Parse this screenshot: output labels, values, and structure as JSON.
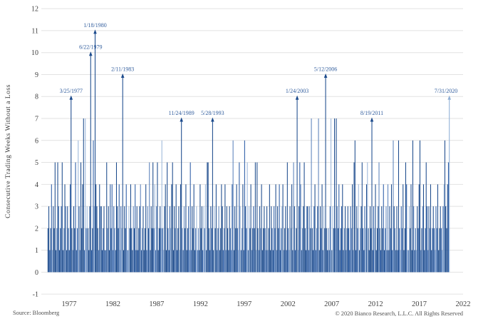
{
  "figure": {
    "source": "Source: Bloomberg",
    "copyright": "© 2020 Bianco Research, L.L.C. All Rights Reserved"
  },
  "chart_data": {
    "type": "bar",
    "title": "",
    "ylabel": "Consecutive Trading Weeks Without a Loss",
    "xlabel": "",
    "grid": true,
    "legend": "none",
    "ylim": [
      -1,
      12
    ],
    "y_tick_labels": [
      "-1",
      "0",
      "1",
      "2",
      "3",
      "4",
      "5",
      "6",
      "7",
      "8",
      "9",
      "10",
      "11",
      "12"
    ],
    "x_tick_labels": [
      "1977",
      "1982",
      "1987",
      "1992",
      "1997",
      "2002",
      "2007",
      "2012",
      "2017",
      "2022"
    ],
    "x_range_years": [
      1975.3,
      2020.6
    ],
    "series_name": "Weekly streak length (weeks without a loss)",
    "values_encoding": "one hex char per weekly bar, left-to-right; a=10, b=11",
    "values_encoded_rows": [
      "231241325125312351243132148213251263152471723",
      "213a1263b432143312311523142413215324132913241",
      "132421324131234123124132513252413512326213415",
      "213245132412314721324123151324123121423132415",
      "521327132412312431241321321461324215312416325",
      "132412325152132412321312413213241324123412315",
      "213241531281354123521331327213412371324132921",
      "213713272732412341231232132415613241235213245",
      "213271324123521324123141324163213162132412541",
      "132416312132461234125313241232132412321346324",
      "58"
    ],
    "annotated_peaks": [
      {
        "date": "3/25/1977",
        "value": 8,
        "index": 26
      },
      {
        "date": "6/22/1979",
        "value": 10,
        "index": 48
      },
      {
        "date": "1/18/1980",
        "value": 11,
        "index": 53
      },
      {
        "date": "2/11/1983",
        "value": 9,
        "index": 84
      },
      {
        "date": "11/24/1989",
        "value": 7,
        "index": 150
      },
      {
        "date": "5/28/1993",
        "value": 7,
        "index": 185
      },
      {
        "date": "1/24/2003",
        "value": 8,
        "index": 280
      },
      {
        "date": "5/12/2006",
        "value": 9,
        "index": 312
      },
      {
        "date": "8/19/2011",
        "value": 7,
        "index": 364
      },
      {
        "date": "7/31/2020",
        "value": 8,
        "index": 451,
        "light": true
      }
    ],
    "colors": {
      "bar_dark": "#1b4a8c",
      "bar_mid": "#2a5ba5",
      "bar_soft": "#5b82bb",
      "bar_pale": "#9cb7da",
      "bar_highlight_light": "#8fafd6",
      "annotation_text": "#35609f",
      "gridline": "#e2e2e2",
      "tick_text": "#404040",
      "footer_text": "#4f4f4f"
    }
  }
}
